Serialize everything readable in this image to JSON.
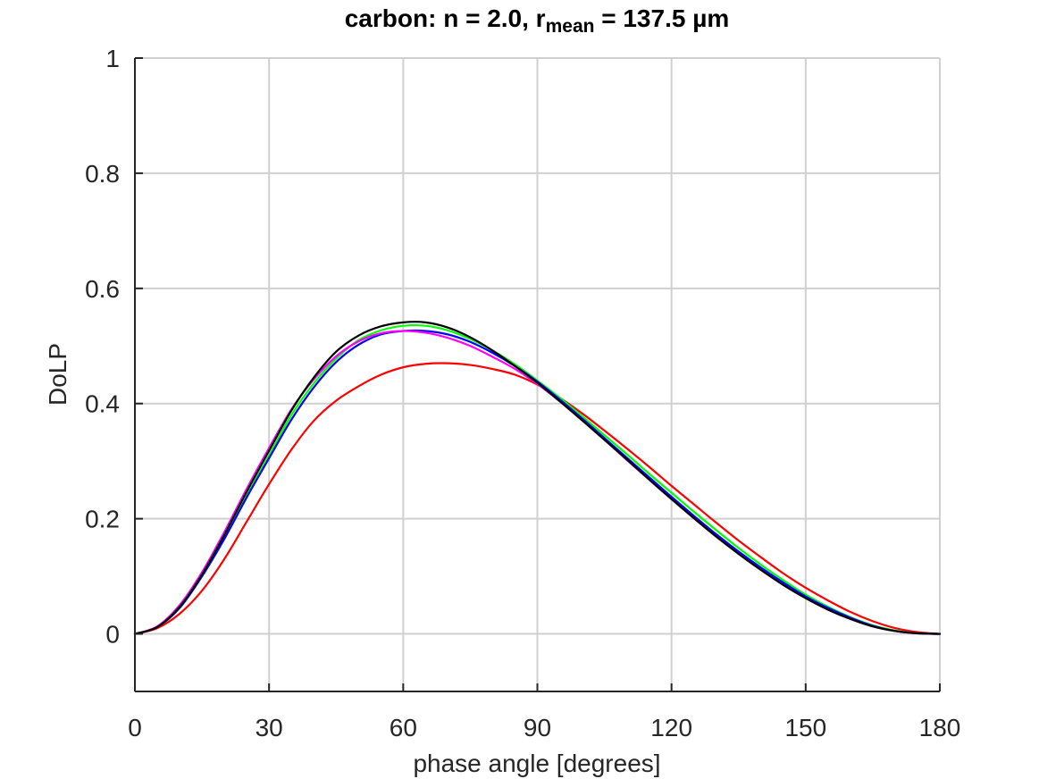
{
  "chart_data": {
    "type": "line",
    "title": {
      "prefix": "carbon: n = 2.0, r",
      "subscript": "mean",
      "suffix": " = 137.5 µm"
    },
    "xlabel": "phase angle [degrees]",
    "ylabel": "DoLP",
    "xlim": [
      0,
      180
    ],
    "ylim": [
      -0.1,
      1
    ],
    "xticks": [
      0,
      30,
      60,
      90,
      120,
      150,
      180
    ],
    "xtick_labels": [
      "0",
      "30",
      "60",
      "90",
      "120",
      "150",
      "180"
    ],
    "yticks": [
      0,
      0.2,
      0.4,
      0.6,
      0.8,
      1
    ],
    "ytick_labels": [
      "0",
      "0.2",
      "0.4",
      "0.6",
      "0.8",
      "1"
    ],
    "grid": true,
    "x": [
      0,
      5,
      10,
      15,
      20,
      25,
      30,
      35,
      40,
      45,
      50,
      55,
      60,
      65,
      70,
      75,
      80,
      85,
      90,
      95,
      100,
      105,
      110,
      115,
      120,
      125,
      130,
      135,
      140,
      145,
      150,
      155,
      160,
      165,
      170,
      175,
      180
    ],
    "series": [
      {
        "name": "red",
        "color": "#ff0000",
        "values": [
          0,
          0.01,
          0.035,
          0.075,
          0.13,
          0.195,
          0.26,
          0.32,
          0.37,
          0.405,
          0.43,
          0.45,
          0.463,
          0.469,
          0.47,
          0.467,
          0.46,
          0.45,
          0.433,
          0.41,
          0.383,
          0.353,
          0.322,
          0.29,
          0.257,
          0.225,
          0.193,
          0.162,
          0.133,
          0.105,
          0.08,
          0.058,
          0.038,
          0.022,
          0.01,
          0.003,
          0
        ]
      },
      {
        "name": "green",
        "color": "#00ff00",
        "values": [
          0,
          0.012,
          0.045,
          0.1,
          0.165,
          0.24,
          0.31,
          0.38,
          0.435,
          0.478,
          0.51,
          0.527,
          0.535,
          0.535,
          0.527,
          0.512,
          0.492,
          0.468,
          0.44,
          0.41,
          0.378,
          0.345,
          0.312,
          0.278,
          0.245,
          0.212,
          0.18,
          0.149,
          0.12,
          0.093,
          0.068,
          0.047,
          0.029,
          0.015,
          0.006,
          0.001,
          0
        ]
      },
      {
        "name": "blue",
        "color": "#0000ff",
        "values": [
          0,
          0.012,
          0.045,
          0.1,
          0.165,
          0.237,
          0.305,
          0.372,
          0.428,
          0.472,
          0.502,
          0.52,
          0.526,
          0.526,
          0.52,
          0.507,
          0.488,
          0.465,
          0.438,
          0.407,
          0.374,
          0.34,
          0.306,
          0.272,
          0.238,
          0.205,
          0.173,
          0.143,
          0.115,
          0.089,
          0.065,
          0.045,
          0.028,
          0.014,
          0.005,
          0.001,
          0
        ]
      },
      {
        "name": "magenta",
        "color": "#ff00ff",
        "values": [
          0,
          0.013,
          0.05,
          0.107,
          0.177,
          0.252,
          0.323,
          0.39,
          0.442,
          0.482,
          0.508,
          0.522,
          0.526,
          0.523,
          0.514,
          0.5,
          0.481,
          0.46,
          0.434,
          0.404,
          0.371,
          0.337,
          0.302,
          0.268,
          0.234,
          0.201,
          0.169,
          0.139,
          0.111,
          0.085,
          0.062,
          0.042,
          0.026,
          0.013,
          0.005,
          0.001,
          0
        ]
      },
      {
        "name": "black",
        "color": "#000000",
        "values": [
          0,
          0.012,
          0.047,
          0.103,
          0.172,
          0.247,
          0.318,
          0.388,
          0.445,
          0.49,
          0.518,
          0.534,
          0.541,
          0.541,
          0.532,
          0.515,
          0.492,
          0.465,
          0.436,
          0.404,
          0.371,
          0.337,
          0.303,
          0.268,
          0.234,
          0.201,
          0.169,
          0.139,
          0.111,
          0.085,
          0.062,
          0.042,
          0.026,
          0.013,
          0.005,
          0.001,
          0
        ]
      }
    ]
  }
}
